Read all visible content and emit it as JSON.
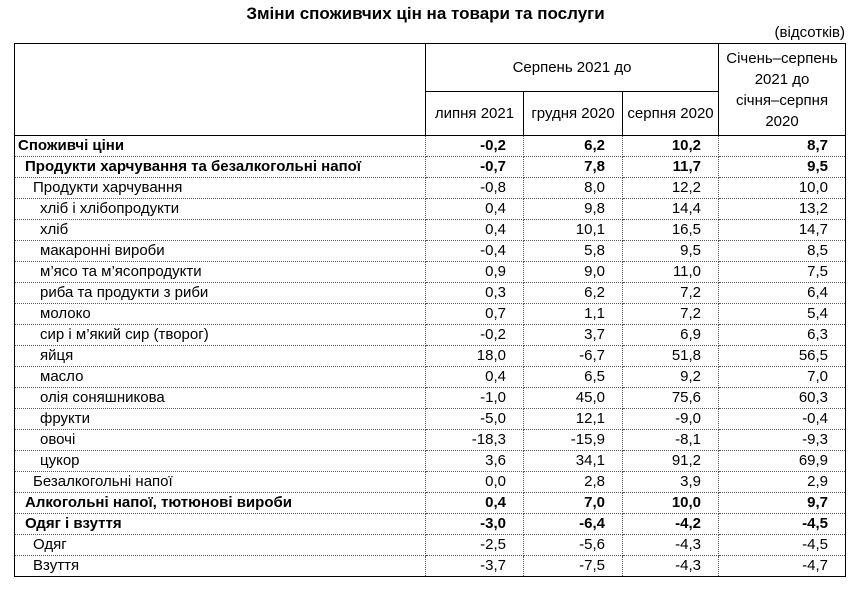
{
  "title": "Зміни споживчих цін на товари та послуги",
  "unit_note": "(відсотків)",
  "table": {
    "header": {
      "group_label": "Серпень 2021 до",
      "sub_labels": [
        "липня 2021",
        "грудня 2020",
        "серпня 2020"
      ],
      "period_label": "Січень–серпень\n2021 до\nсічня–серпня\n2020"
    },
    "rows": [
      {
        "label": "Споживчі ціни",
        "indent": 0,
        "bold": true,
        "values": [
          "-0,2",
          "6,2",
          "10,2",
          "8,7"
        ]
      },
      {
        "label": "Продукти харчування та безалкогольні напої",
        "indent": 1,
        "bold": true,
        "values": [
          "-0,7",
          "7,8",
          "11,7",
          "9,5"
        ]
      },
      {
        "label": "Продукти харчування",
        "indent": 2,
        "bold": false,
        "values": [
          "-0,8",
          "8,0",
          "12,2",
          "10,0"
        ]
      },
      {
        "label": "хліб і хлібопродукти",
        "indent": 3,
        "bold": false,
        "values": [
          "0,4",
          "9,8",
          "14,4",
          "13,2"
        ]
      },
      {
        "label": "хліб",
        "indent": 3,
        "bold": false,
        "values": [
          "0,4",
          "10,1",
          "16,5",
          "14,7"
        ]
      },
      {
        "label": "макаронні вироби",
        "indent": 3,
        "bold": false,
        "values": [
          "-0,4",
          "5,8",
          "9,5",
          "8,5"
        ]
      },
      {
        "label": "м’ясо та м’ясопродукти",
        "indent": 3,
        "bold": false,
        "values": [
          "0,9",
          "9,0",
          "11,0",
          "7,5"
        ]
      },
      {
        "label": "риба та продукти з риби",
        "indent": 3,
        "bold": false,
        "values": [
          "0,3",
          "6,2",
          "7,2",
          "6,4"
        ]
      },
      {
        "label": "молоко",
        "indent": 3,
        "bold": false,
        "values": [
          "0,7",
          "1,1",
          "7,2",
          "5,4"
        ]
      },
      {
        "label": "сир і м’який сир (творог)",
        "indent": 3,
        "bold": false,
        "values": [
          "-0,2",
          "3,7",
          "6,9",
          "6,3"
        ]
      },
      {
        "label": "яйця",
        "indent": 3,
        "bold": false,
        "values": [
          "18,0",
          "-6,7",
          "51,8",
          "56,5"
        ]
      },
      {
        "label": "масло",
        "indent": 3,
        "bold": false,
        "values": [
          "0,4",
          "6,5",
          "9,2",
          "7,0"
        ]
      },
      {
        "label": "олія соняшникова",
        "indent": 3,
        "bold": false,
        "values": [
          "-1,0",
          "45,0",
          "75,6",
          "60,3"
        ]
      },
      {
        "label": "фрукти",
        "indent": 3,
        "bold": false,
        "values": [
          "-5,0",
          "12,1",
          "-9,0",
          "-0,4"
        ]
      },
      {
        "label": "овочі",
        "indent": 3,
        "bold": false,
        "values": [
          "-18,3",
          "-15,9",
          "-8,1",
          "-9,3"
        ]
      },
      {
        "label": "цукор",
        "indent": 3,
        "bold": false,
        "values": [
          "3,6",
          "34,1",
          "91,2",
          "69,9"
        ]
      },
      {
        "label": "Безалкогольні напої",
        "indent": 2,
        "bold": false,
        "values": [
          "0,0",
          "2,8",
          "3,9",
          "2,9"
        ]
      },
      {
        "label": "Алкогольні напої, тютюнові вироби",
        "indent": 1,
        "bold": true,
        "values": [
          "0,4",
          "7,0",
          "10,0",
          "9,7"
        ]
      },
      {
        "label": "Одяг і взуття",
        "indent": 1,
        "bold": true,
        "values": [
          "-3,0",
          "-6,4",
          "-4,2",
          "-4,5"
        ]
      },
      {
        "label": "Одяг",
        "indent": 2,
        "bold": false,
        "values": [
          "-2,5",
          "-5,6",
          "-4,3",
          "-4,5"
        ]
      },
      {
        "label": "Взуття",
        "indent": 2,
        "bold": false,
        "values": [
          "-3,7",
          "-7,5",
          "-4,3",
          "-4,7"
        ]
      }
    ]
  },
  "colors": {
    "text": "#000000",
    "border_solid": "#000000",
    "border_dotted": "#595959",
    "background": "#ffffff"
  }
}
